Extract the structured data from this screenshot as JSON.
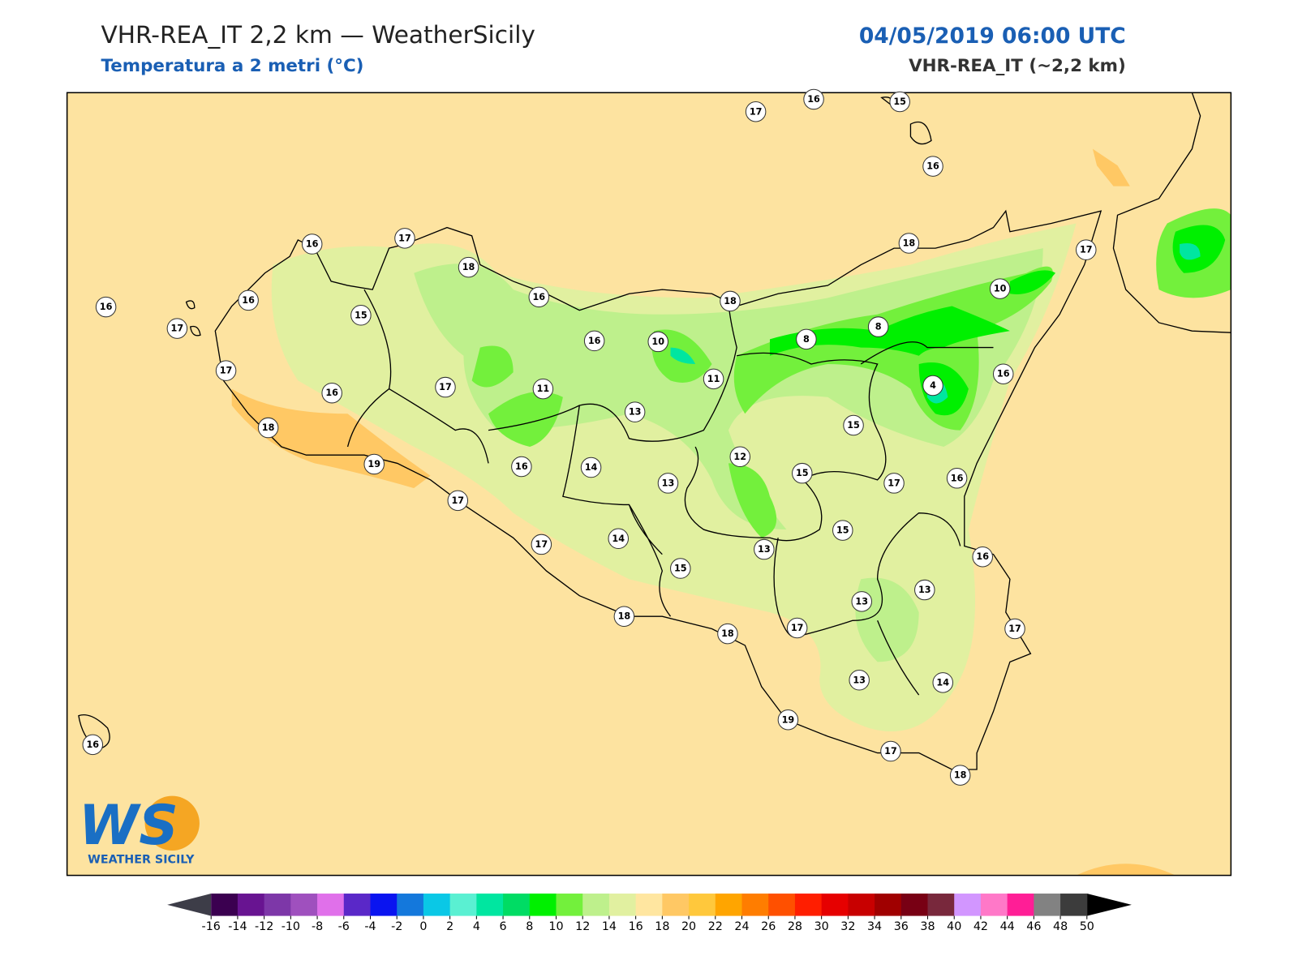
{
  "header": {
    "title": "VHR-REA_IT 2,2 km — WeatherSicily",
    "subtitle": "Temperatura a 2 metri (°C)",
    "date": "04/05/2019 06:00 UTC",
    "model": "VHR-REA_IT (~2,2 km)"
  },
  "stations": [
    17,
    16,
    15,
    16,
    16,
    17,
    18,
    18,
    17,
    16,
    16,
    15,
    16,
    18,
    10,
    17,
    16,
    10,
    8,
    8,
    17,
    16,
    17,
    11,
    11,
    4,
    16,
    13,
    15,
    18,
    19,
    16,
    14,
    12,
    15,
    13,
    17,
    16,
    17,
    15,
    17,
    14,
    13,
    15,
    16,
    13,
    13,
    18,
    18,
    17,
    17,
    13,
    14,
    19,
    17,
    18,
    16
  ],
  "colorbar": {
    "ticks": [
      -16,
      -14,
      -12,
      -10,
      -8,
      -6,
      -4,
      -2,
      0,
      2,
      4,
      6,
      8,
      10,
      12,
      14,
      16,
      18,
      20,
      22,
      24,
      26,
      28,
      30,
      32,
      34,
      36,
      38,
      40,
      42,
      44,
      46,
      48,
      50
    ],
    "colors": [
      "#3b0050",
      "#681491",
      "#7d37a8",
      "#9f50be",
      "#e070ea",
      "#5a28c8",
      "#0a14f0",
      "#1478dc",
      "#0ac8e6",
      "#5af0d2",
      "#00e6a0",
      "#00dc64",
      "#00f000",
      "#73f03c",
      "#bef08c",
      "#e1f0a0",
      "#ffe6a0",
      "#ffc864",
      "#ffc83c",
      "#ffa500",
      "#ff7d00",
      "#ff5000",
      "#ff1e00",
      "#e60000",
      "#c80000",
      "#a00000",
      "#780014",
      "#78283c",
      "#d296ff",
      "#ff78c8",
      "#ff1e96",
      "#828282",
      "#3c3c3c"
    ],
    "under_color": "#3d3d48",
    "over_color": "#000000"
  },
  "logo": {
    "mark": "WS",
    "text": "WEATHER SICILY"
  }
}
